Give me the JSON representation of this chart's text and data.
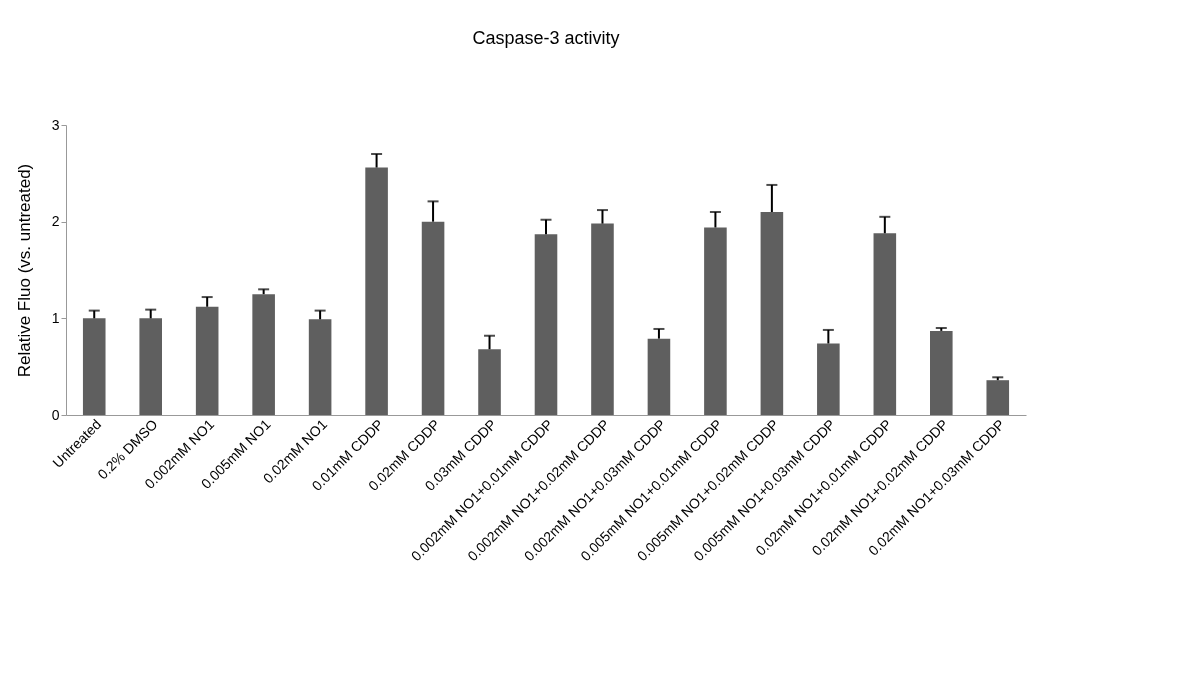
{
  "chart_data": {
    "type": "bar",
    "title": "Caspase-3 activity",
    "ylabel": "Relative Fluo (vs. untreated)",
    "categories": [
      "Untreated",
      "0.2% DMSO",
      "0.002mM NO1",
      "0.005mM NO1",
      "0.02mM NO1",
      "0.01mM CDDP",
      "0.02mM CDDP",
      "0.03mM CDDP",
      "0.002mM NO1+0.01mM CDDP",
      "0.002mM NO1+0.02mM CDDP",
      "0.002mM NO1+0.03mM CDDP",
      "0.005mM NO1+0.01mM CDDP",
      "0.005mM NO1+0.02mM CDDP",
      "0.005mM NO1+0.03mM CDDP",
      "0.02mM NO1+0.01mM CDDP",
      "0.02mM NO1+0.02mM CDDP",
      "0.02mM NO1+0.03mM CDDP"
    ],
    "values": [
      1.0,
      1.0,
      1.12,
      1.25,
      0.99,
      2.56,
      2.0,
      0.68,
      1.87,
      1.98,
      0.79,
      1.94,
      2.1,
      0.74,
      1.88,
      0.87,
      0.36
    ],
    "errors": [
      [
        1.0,
        1.08
      ],
      [
        1.0,
        1.09
      ],
      [
        1.12,
        1.22
      ],
      [
        1.25,
        1.3
      ],
      [
        0.99,
        1.08
      ],
      [
        2.56,
        2.7
      ],
      [
        2.0,
        2.21
      ],
      [
        0.68,
        0.82
      ],
      [
        1.87,
        2.02
      ],
      [
        1.98,
        2.12
      ],
      [
        0.79,
        0.89
      ],
      [
        1.94,
        2.1
      ],
      [
        2.1,
        2.38
      ],
      [
        0.74,
        0.88
      ],
      [
        1.88,
        2.05
      ],
      [
        0.87,
        0.9
      ],
      [
        0.36,
        0.39
      ]
    ],
    "color": "#5f5f5f",
    "ylim": [
      0,
      3
    ],
    "yticks": [
      0,
      1,
      2,
      3
    ],
    "grid": false
  }
}
